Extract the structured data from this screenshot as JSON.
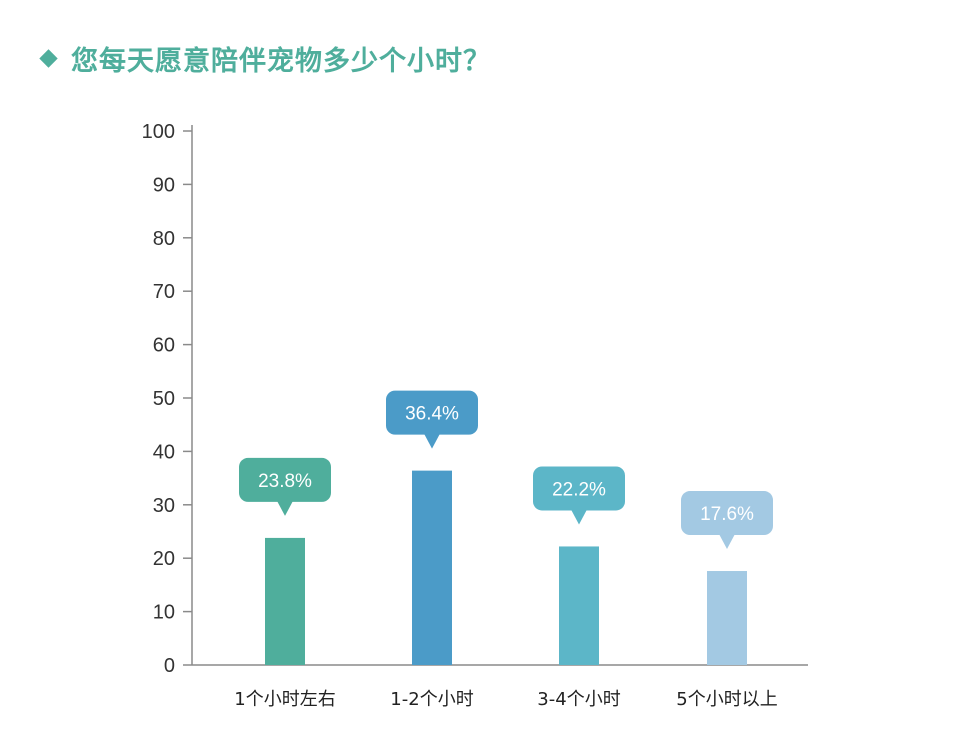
{
  "title": "您每天愿意陪伴宠物多少个小时？",
  "chart_data": {
    "type": "bar",
    "title": "您每天愿意陪伴宠物多少个小时？",
    "categories": [
      "1个小时左右",
      "1-2个小时",
      "3-4个小时",
      "5个小时以上"
    ],
    "values": [
      23.8,
      36.4,
      22.2,
      17.6
    ],
    "data_labels": [
      "23.8%",
      "36.4%",
      "22.2%",
      "17.6%"
    ],
    "ylim": [
      0,
      100
    ],
    "yticks": [
      0,
      10,
      20,
      30,
      40,
      50,
      60,
      70,
      80,
      90,
      100
    ],
    "grid": false,
    "xlabel": "",
    "ylabel": "",
    "colors": [
      "#4fae9c",
      "#4b9bc8",
      "#5cb6c8",
      "#a3c9e3"
    ],
    "title_color": "#4fae9c"
  }
}
